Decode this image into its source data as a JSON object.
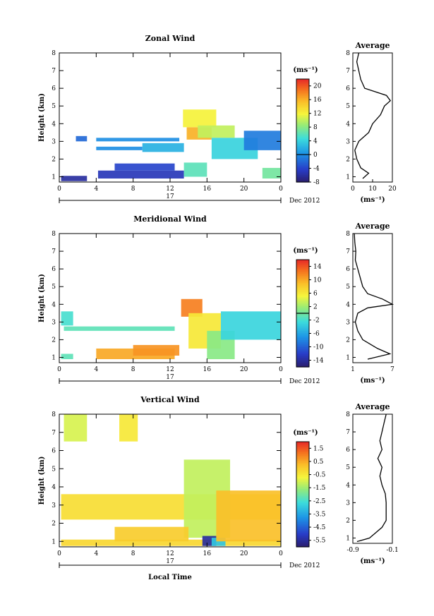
{
  "figure": {
    "x_axis_label": "Local Time",
    "date_label": "Dec 2012",
    "day_label": "17"
  },
  "chart_data": [
    {
      "type": "heatmap",
      "title": "Zonal Wind",
      "ylabel": "Height (km)",
      "xlabel": "Local Time",
      "x_ticks": [
        "0",
        "4",
        "8",
        "12",
        "16",
        "20",
        "0"
      ],
      "y_ticks": [
        "1",
        "2",
        "3",
        "4",
        "5",
        "6",
        "7",
        "8"
      ],
      "xlim_hours": [
        0,
        24
      ],
      "ylim_km": [
        0.7,
        8
      ],
      "colorbar": {
        "unit": "(ms⁻¹)",
        "min": -8,
        "max": 22,
        "ticks": [
          "20",
          "16",
          "12",
          "8",
          "4",
          "0",
          "-4",
          "-8"
        ],
        "tick_values": [
          20,
          16,
          12,
          8,
          4,
          0,
          -4,
          -8
        ],
        "zero_line": 0
      },
      "regions": [
        {
          "x": [
            1.8,
            3.0
          ],
          "y": [
            3.0,
            3.3
          ],
          "v": -2
        },
        {
          "x": [
            4.0,
            9.0
          ],
          "y": [
            2.5,
            2.7
          ],
          "v": 0
        },
        {
          "x": [
            9.0,
            13.5
          ],
          "y": [
            2.4,
            2.9
          ],
          "v": 2
        },
        {
          "x": [
            4.0,
            13.0
          ],
          "y": [
            3.0,
            3.2
          ],
          "v": 0
        },
        {
          "x": [
            0.2,
            3.0
          ],
          "y": [
            0.75,
            1.05
          ],
          "v": -6
        },
        {
          "x": [
            4.2,
            13.5
          ],
          "y": [
            0.9,
            1.35
          ],
          "v": -5
        },
        {
          "x": [
            6.0,
            12.5
          ],
          "y": [
            1.35,
            1.75
          ],
          "v": -4
        },
        {
          "x": [
            13.5,
            16.0
          ],
          "y": [
            1.0,
            1.8
          ],
          "v": 6
        },
        {
          "x": [
            13.8,
            16.5
          ],
          "y": [
            3.1,
            3.8
          ],
          "v": 16
        },
        {
          "x": [
            13.4,
            17.0
          ],
          "y": [
            3.8,
            4.8
          ],
          "v": 12
        },
        {
          "x": [
            15.0,
            19.0
          ],
          "y": [
            3.2,
            3.9
          ],
          "v": 10
        },
        {
          "x": [
            16.5,
            21.5
          ],
          "y": [
            2.0,
            3.2
          ],
          "v": 4
        },
        {
          "x": [
            20.0,
            24.0
          ],
          "y": [
            2.5,
            3.6
          ],
          "v": -1
        },
        {
          "x": [
            22.0,
            24.0
          ],
          "y": [
            0.9,
            1.5
          ],
          "v": 7
        }
      ],
      "average_profile": {
        "title": "Average",
        "unit": "(ms⁻¹)",
        "x_ticks": [
          "0",
          "10",
          "20"
        ],
        "xlim": [
          0,
          20
        ],
        "heights": [
          0.9,
          1.2,
          1.5,
          2.0,
          2.5,
          3.0,
          3.5,
          4.0,
          4.5,
          5.0,
          5.3,
          5.6,
          6.0,
          6.5,
          7.0,
          7.5,
          8.0
        ],
        "values": [
          5,
          8,
          4,
          2,
          1,
          3,
          8,
          10,
          14,
          16,
          19,
          17,
          6,
          4,
          3,
          2,
          3
        ]
      }
    },
    {
      "type": "heatmap",
      "title": "Meridional Wind",
      "ylabel": "Height (km)",
      "xlabel": "Local Time",
      "x_ticks": [
        "0",
        "4",
        "8",
        "12",
        "16",
        "20",
        "0"
      ],
      "y_ticks": [
        "1",
        "2",
        "3",
        "4",
        "5",
        "6",
        "7",
        "8"
      ],
      "xlim_hours": [
        0,
        24
      ],
      "ylim_km": [
        0.7,
        8
      ],
      "colorbar": {
        "unit": "(ms⁻¹)",
        "min": -16,
        "max": 16,
        "ticks": [
          "14",
          "10",
          "6",
          "2",
          "-2",
          "-6",
          "-10",
          "-14"
        ],
        "tick_values": [
          14,
          10,
          6,
          2,
          -2,
          -6,
          -10,
          -14
        ],
        "zero_line": 0
      },
      "regions": [
        {
          "x": [
            0.2,
            1.5
          ],
          "y": [
            2.8,
            3.6
          ],
          "v": -2
        },
        {
          "x": [
            0.5,
            12.5
          ],
          "y": [
            2.5,
            2.75
          ],
          "v": -1
        },
        {
          "x": [
            4.0,
            12.5
          ],
          "y": [
            0.9,
            1.5
          ],
          "v": 10
        },
        {
          "x": [
            8.0,
            13.0
          ],
          "y": [
            1.1,
            1.7
          ],
          "v": 11
        },
        {
          "x": [
            13.2,
            15.5
          ],
          "y": [
            3.3,
            4.3
          ],
          "v": 12
        },
        {
          "x": [
            14.0,
            17.5
          ],
          "y": [
            1.5,
            3.5
          ],
          "v": 6
        },
        {
          "x": [
            16.0,
            19.0
          ],
          "y": [
            0.9,
            2.5
          ],
          "v": 1
        },
        {
          "x": [
            17.5,
            24.0
          ],
          "y": [
            2.0,
            3.6
          ],
          "v": -3
        },
        {
          "x": [
            0.2,
            1.5
          ],
          "y": [
            0.9,
            1.2
          ],
          "v": -1
        }
      ],
      "average_profile": {
        "title": "Average",
        "unit": "(ms⁻¹)",
        "x_ticks": [
          "1",
          "7"
        ],
        "xlim": [
          0,
          8
        ],
        "heights": [
          0.9,
          1.2,
          1.5,
          2.0,
          2.5,
          3.0,
          3.5,
          3.8,
          4.0,
          4.3,
          4.6,
          5.0,
          5.5,
          6.0,
          6.5,
          7.0,
          7.5,
          8.0
        ],
        "values": [
          3,
          7.5,
          5,
          2,
          1,
          0.5,
          1,
          3,
          8,
          6,
          3,
          2,
          1.5,
          1,
          0.5,
          0.6,
          0.4,
          0.3
        ]
      }
    },
    {
      "type": "heatmap",
      "title": "Vertical Wind",
      "ylabel": "Height (km)",
      "xlabel": "Local Time",
      "x_ticks": [
        "0",
        "4",
        "8",
        "12",
        "16",
        "20",
        "0"
      ],
      "y_ticks": [
        "1",
        "2",
        "3",
        "4",
        "5",
        "6",
        "7",
        "8"
      ],
      "xlim_hours": [
        0,
        24
      ],
      "ylim_km": [
        0.7,
        8
      ],
      "colorbar": {
        "unit": "(ms⁻¹)",
        "min": -6.0,
        "max": 2.0,
        "ticks": [
          "1.5",
          "0.5",
          "-0.5",
          "-1.5",
          "-2.5",
          "-3.5",
          "-4.5",
          "-5.5"
        ],
        "tick_values": [
          1.5,
          0.5,
          -0.5,
          -1.5,
          -2.5,
          -3.5,
          -4.5,
          -5.5
        ]
      },
      "regions": [
        {
          "x": [
            0.2,
            24.0
          ],
          "y": [
            0.75,
            1.1
          ],
          "v": -0.2
        },
        {
          "x": [
            0.2,
            24.0
          ],
          "y": [
            2.2,
            3.6
          ],
          "v": -0.3
        },
        {
          "x": [
            0.5,
            3.0
          ],
          "y": [
            6.5,
            8.0
          ],
          "v": -1.0
        },
        {
          "x": [
            6.5,
            8.5
          ],
          "y": [
            6.5,
            8.0
          ],
          "v": -0.5
        },
        {
          "x": [
            13.5,
            18.5
          ],
          "y": [
            1.2,
            5.5
          ],
          "v": -1.2
        },
        {
          "x": [
            15.5,
            17.0
          ],
          "y": [
            0.75,
            1.3
          ],
          "v": -5.5
        },
        {
          "x": [
            16.5,
            18.0
          ],
          "y": [
            0.75,
            1.2
          ],
          "v": -3.0
        },
        {
          "x": [
            17.0,
            24.0
          ],
          "y": [
            1.0,
            3.8
          ],
          "v": 0.2
        },
        {
          "x": [
            6.0,
            14.0
          ],
          "y": [
            1.0,
            1.8
          ],
          "v": 0.0
        }
      ],
      "average_profile": {
        "title": "Average",
        "unit": "(ms⁻¹)",
        "x_ticks": [
          "-0.9",
          "-0.1"
        ],
        "xlim": [
          -1.0,
          -0.05
        ],
        "heights": [
          0.8,
          1.0,
          1.3,
          1.6,
          2.0,
          2.5,
          3.0,
          3.5,
          4.0,
          4.5,
          5.0,
          5.5,
          6.0,
          6.5,
          7.0,
          7.5,
          8.0
        ],
        "values": [
          -0.9,
          -0.6,
          -0.45,
          -0.3,
          -0.2,
          -0.2,
          -0.2,
          -0.22,
          -0.3,
          -0.35,
          -0.3,
          -0.4,
          -0.3,
          -0.35,
          -0.3,
          -0.25,
          -0.2
        ]
      }
    }
  ]
}
